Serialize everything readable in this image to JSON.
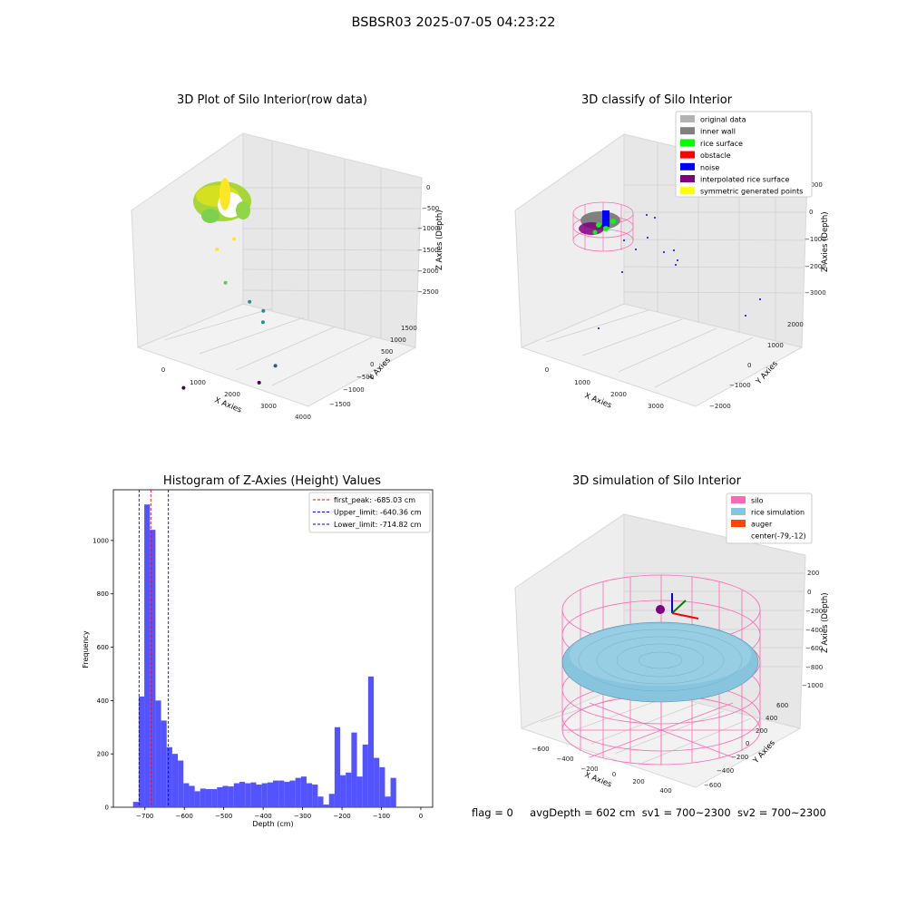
{
  "page_title": "BSBSR03 2025-07-05 04:23:22",
  "footer": {
    "flag": "flag = 0",
    "avg_depth": "avgDepth = 602 cm",
    "sv1": "sv1 = 700~2300",
    "sv2": "sv2 = 700~2300"
  },
  "colors": {
    "original_data": "#b3b3b3",
    "inner_wall": "#808080",
    "rice_surface": "#00ff00",
    "obstacle": "#ff0000",
    "noise": "#0000ff",
    "interpolated_rice_surface": "#800080",
    "symmetric_points": "#ffff00",
    "histogram_bar": "#4a4aff",
    "first_peak_line": "#ff0000",
    "limit_lines": "#0000ff",
    "silo": "#ff69b4",
    "rice_simulation": "#87c5de",
    "auger": "#ff4500"
  },
  "chart_data": [
    {
      "type": "scatter",
      "subtype": "3d",
      "title": "3D Plot of Silo Interior(row data)",
      "xlabel": "X Axies",
      "ylabel": "Y Axies",
      "zlabel": "Z Axies (Depth)",
      "x_ticks": [
        "0",
        "1000",
        "2000",
        "3000",
        "4000"
      ],
      "y_ticks": [
        "−1500",
        "−1000",
        "−500",
        "0",
        "500",
        "1000",
        "1500"
      ],
      "z_ticks": [
        "0",
        "−500",
        "−1000",
        "−1500",
        "−2000",
        "−2500"
      ],
      "colormap": "viridis",
      "points": [
        {
          "x": 3300,
          "y": -100,
          "z": -2100
        },
        {
          "x": 3200,
          "y": -500,
          "z": -2300
        },
        {
          "x": 1400,
          "y": -900,
          "z": -2600
        },
        {
          "x": 900,
          "y": 700,
          "z": -900
        },
        {
          "x": 1600,
          "y": 200,
          "z": -1200
        },
        {
          "x": 2200,
          "y": 300,
          "z": -1400
        },
        {
          "x": 2500,
          "y": 400,
          "z": -1500
        },
        {
          "x": 2400,
          "y": 500,
          "z": -1700
        },
        {
          "x": 1300,
          "y": 800,
          "z": -700
        }
      ]
    },
    {
      "type": "scatter",
      "subtype": "3d",
      "title": "3D classify of Silo Interior",
      "xlabel": "X Axies",
      "ylabel": "Y Axies",
      "zlabel": "Z Axies (Depth)",
      "x_ticks": [
        "0",
        "1000",
        "2000",
        "3000"
      ],
      "y_ticks": [
        "−2000",
        "−1000",
        "0",
        "1000",
        "2000"
      ],
      "z_ticks": [
        "1000",
        "0",
        "−1000",
        "−2000",
        "−3000"
      ],
      "legend": [
        {
          "label": "original data",
          "color_key": "original_data"
        },
        {
          "label": "inner wall",
          "color_key": "inner_wall"
        },
        {
          "label": "rice surface",
          "color_key": "rice_surface"
        },
        {
          "label": "obstacle",
          "color_key": "obstacle"
        },
        {
          "label": "noise",
          "color_key": "noise"
        },
        {
          "label": "interpolated rice surface",
          "color_key": "interpolated_rice_surface"
        },
        {
          "label": "symmetric generated points",
          "color_key": "symmetric_points"
        }
      ],
      "legend_position": "top-right"
    },
    {
      "type": "bar",
      "subtype": "histogram",
      "title": "Histogram of Z-Axies (Height) Values",
      "xlabel": "Depth (cm)",
      "ylabel": "Frequency",
      "xlim": [
        -780,
        30
      ],
      "ylim": [
        0,
        1190
      ],
      "x_ticks": [
        -700,
        -600,
        -500,
        -400,
        -300,
        -200,
        -100,
        0
      ],
      "y_ticks": [
        0,
        200,
        400,
        600,
        800,
        1000
      ],
      "bin_start": -730,
      "bin_width": 14.2,
      "counts": [
        20,
        415,
        1135,
        1040,
        400,
        325,
        225,
        200,
        175,
        90,
        80,
        60,
        70,
        68,
        68,
        75,
        80,
        78,
        90,
        95,
        90,
        93,
        85,
        90,
        93,
        100,
        100,
        95,
        100,
        110,
        115,
        90,
        85,
        40,
        10,
        50,
        300,
        120,
        130,
        280,
        115,
        235,
        490,
        185,
        150,
        40,
        110
      ],
      "vlines": [
        {
          "label": "first_peak: -685.03 cm",
          "x": -685.03,
          "color_key": "first_peak_line"
        },
        {
          "label": "Upper_limit: -640.36 cm",
          "x": -640.36,
          "color_key": "limit_lines"
        },
        {
          "label": "Lower_limit: -714.82 cm",
          "x": -714.82,
          "color_key": "limit_lines"
        }
      ],
      "legend_position": "top-right"
    },
    {
      "type": "area",
      "subtype": "3d-surface",
      "title": "3D simulation of Silo Interior",
      "xlabel": "X Axies",
      "ylabel": "Y Axies",
      "zlabel": "Z Axies (Depth)",
      "x_ticks": [
        "−600",
        "−400",
        "−200",
        "0",
        "200",
        "400"
      ],
      "y_ticks": [
        "−600",
        "−400",
        "−200",
        "0",
        "200",
        "400",
        "600"
      ],
      "z_ticks": [
        "200",
        "0",
        "−200",
        "−400",
        "−600",
        "−800",
        "−1000"
      ],
      "legend": [
        {
          "label": "silo",
          "color_key": "silo"
        },
        {
          "label": "rice simulation",
          "color_key": "rice_simulation"
        },
        {
          "label": "auger",
          "color_key": "auger"
        },
        {
          "label": "center(-79,-12)",
          "color_key": ""
        }
      ],
      "legend_position": "top-right"
    }
  ]
}
